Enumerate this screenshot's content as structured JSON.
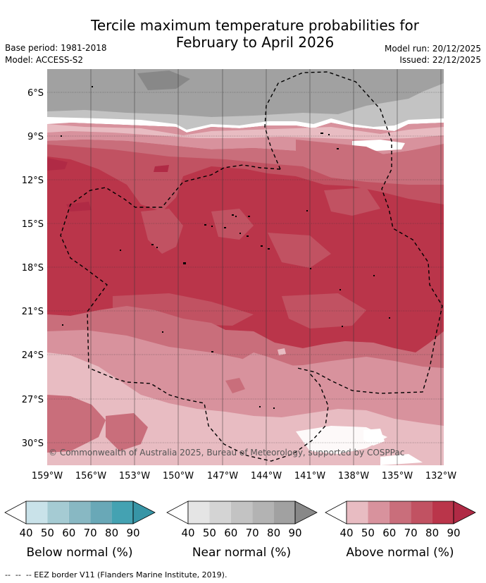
{
  "header": {
    "title_line1": "Tercile maximum temperature probabilities for",
    "title_line2": "February to April 2026",
    "base_period": "Base period: 1981-2018",
    "model": "Model: ACCESS-S2",
    "model_run": "Model run: 20/12/2025",
    "issued": "Issued: 22/12/2025"
  },
  "map": {
    "lat_labels": [
      "6°S",
      "9°S",
      "12°S",
      "15°S",
      "18°S",
      "21°S",
      "24°S",
      "27°S",
      "30°S"
    ],
    "lon_labels": [
      "159°W",
      "156°W",
      "153°W",
      "150°W",
      "147°W",
      "144°W",
      "141°W",
      "138°W",
      "135°W",
      "132°W"
    ],
    "credit": "© Commonwealth of Australia 2025, Bureau of Meteorology, supported by COSPPac",
    "grid": true,
    "eez_border": "dashed"
  },
  "colorbars": [
    {
      "title": "Below normal (%)",
      "ticks": [
        "40",
        "50",
        "60",
        "70",
        "80",
        "90"
      ],
      "colors": [
        "#ffffff",
        "#c9e2e9",
        "#a5cbd3",
        "#88b8c3",
        "#69a8b7",
        "#44a2b2",
        "#3795a6"
      ]
    },
    {
      "title": "Near normal (%)",
      "ticks": [
        "40",
        "50",
        "60",
        "70",
        "80",
        "90"
      ],
      "colors": [
        "#ffffff",
        "#e5e5e5",
        "#d4d4d4",
        "#c3c3c3",
        "#b3b3b3",
        "#a1a1a1",
        "#888888"
      ]
    },
    {
      "title": "Above normal (%)",
      "ticks": [
        "40",
        "50",
        "60",
        "70",
        "80",
        "90"
      ],
      "colors": [
        "#ffffff",
        "#e8bcc2",
        "#d8929d",
        "#c96e7b",
        "#c15262",
        "#ba354a",
        "#b02a45"
      ]
    }
  ],
  "footnote": "--  --  -- EEZ border V11 (Flanders Marine Institute, 2019)."
}
